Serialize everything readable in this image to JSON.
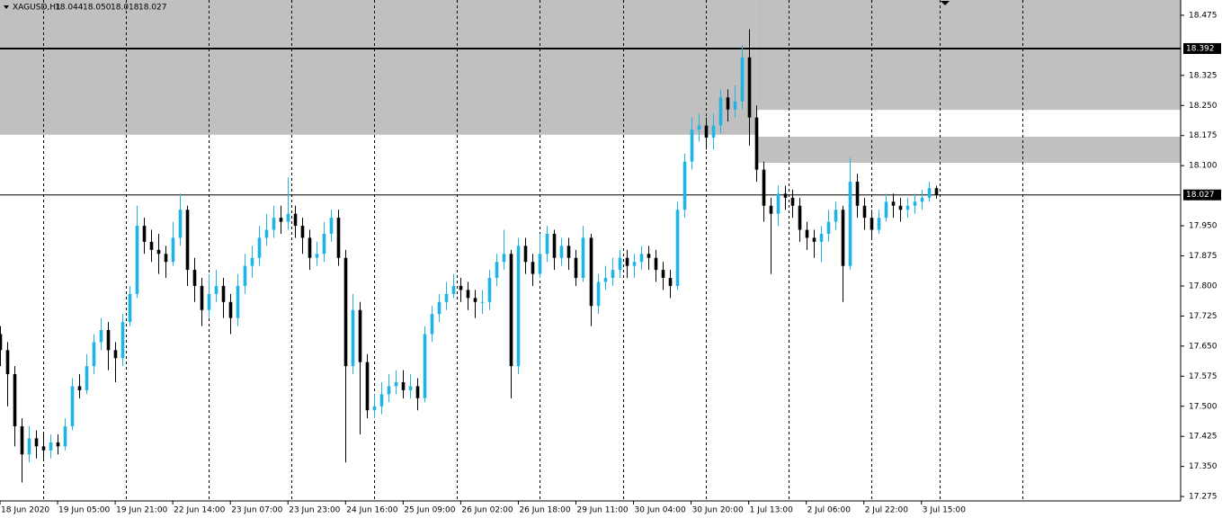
{
  "chart_data": {
    "type": "candlestick",
    "symbol": "XAGUSD,H1",
    "header_ohlc": [
      "18.044",
      "18.050",
      "18.018",
      "18.027"
    ],
    "bull_color": "#1fb4e4",
    "bear_color": "#000000",
    "ylim": [
      17.264,
      18.513
    ],
    "xlim": [
      0,
      164
    ],
    "yticks": [
      18.475,
      18.325,
      {
        "value": 18.25,
        "label": "18.250"
      },
      18.175,
      {
        "value": 18.1,
        "label": "18.100"
      },
      {
        "value": 17.95,
        "label": "17.950"
      },
      17.875,
      {
        "value": 17.8,
        "label": "17.800"
      },
      17.725,
      {
        "value": 17.65,
        "label": "17.650"
      },
      17.575,
      {
        "value": 17.5,
        "label": "17.500"
      },
      17.425,
      {
        "value": 17.35,
        "label": "17.350"
      },
      17.275
    ],
    "xticks": [
      {
        "value": 0,
        "label": "18 Jun 2020"
      },
      {
        "value": 8,
        "label": "19 Jun 05:00"
      },
      {
        "value": 16,
        "label": "19 Jun 21:00"
      },
      {
        "value": 24,
        "label": "22 Jun 14:00"
      },
      {
        "value": 32,
        "label": "23 Jun 07:00"
      },
      {
        "value": 40,
        "label": "23 Jun 23:00"
      },
      {
        "value": 48,
        "label": "24 Jun 16:00"
      },
      {
        "value": 56,
        "label": "25 Jun 09:00"
      },
      {
        "value": 64,
        "label": "26 Jun 02:00"
      },
      {
        "value": 72,
        "label": "26 Jun 18:00"
      },
      {
        "value": 80,
        "label": "29 Jun 11:00"
      },
      {
        "value": 88,
        "label": "30 Jun 04:00"
      },
      {
        "value": 96,
        "label": "30 Jun 20:00"
      },
      {
        "value": 104,
        "label": "1 Jul 13:00"
      },
      {
        "value": 112,
        "label": "2 Jul 06:00"
      },
      {
        "value": 120,
        "label": "2 Jul 22:00"
      },
      {
        "value": 128,
        "label": "3 Jul 15:00"
      }
    ],
    "separators": [
      6,
      17.5,
      29,
      40.5,
      52,
      63.5,
      75,
      86.5,
      98,
      109.5,
      121,
      130.5,
      142
    ],
    "zones": [
      {
        "x": [
          0,
          105
        ],
        "y": [
          18.177,
          18.55
        ]
      },
      {
        "x": [
          105,
          164
        ],
        "y": [
          18.239,
          18.55
        ]
      },
      {
        "x": [
          105,
          164
        ],
        "y": [
          18.107,
          18.172
        ]
      }
    ],
    "zone_color": "#c0c0c0",
    "levels": [
      {
        "value": 18.392,
        "width": 2
      },
      {
        "value": 18.027,
        "width": 1
      }
    ],
    "candles": [
      [
        17.68,
        17.7,
        17.6,
        17.64
      ],
      [
        17.64,
        17.66,
        17.5,
        17.58
      ],
      [
        17.58,
        17.6,
        17.4,
        17.45
      ],
      [
        17.45,
        17.47,
        17.31,
        17.38
      ],
      [
        17.38,
        17.45,
        17.36,
        17.42
      ],
      [
        17.42,
        17.44,
        17.37,
        17.4
      ],
      [
        17.4,
        17.43,
        17.37,
        17.39
      ],
      [
        17.39,
        17.43,
        17.37,
        17.41
      ],
      [
        17.41,
        17.43,
        17.38,
        17.4
      ],
      [
        17.4,
        17.47,
        17.39,
        17.45
      ],
      [
        17.45,
        17.57,
        17.44,
        17.55
      ],
      [
        17.55,
        17.58,
        17.52,
        17.54
      ],
      [
        17.54,
        17.63,
        17.53,
        17.6
      ],
      [
        17.6,
        17.68,
        17.58,
        17.66
      ],
      [
        17.66,
        17.72,
        17.64,
        17.69
      ],
      [
        17.69,
        17.71,
        17.59,
        17.64
      ],
      [
        17.64,
        17.66,
        17.56,
        17.62
      ],
      [
        17.62,
        17.73,
        17.6,
        17.71
      ],
      [
        17.71,
        17.8,
        17.7,
        17.78
      ],
      [
        17.78,
        18.0,
        17.77,
        17.95
      ],
      [
        17.95,
        17.97,
        17.88,
        17.91
      ],
      [
        17.91,
        17.94,
        17.86,
        17.89
      ],
      [
        17.89,
        17.93,
        17.83,
        17.88
      ],
      [
        17.88,
        17.9,
        17.82,
        17.86
      ],
      [
        17.86,
        17.96,
        17.85,
        17.92
      ],
      [
        17.92,
        18.03,
        17.9,
        17.99
      ],
      [
        17.99,
        18.0,
        17.8,
        17.84
      ],
      [
        17.84,
        17.87,
        17.76,
        17.8
      ],
      [
        17.8,
        17.82,
        17.7,
        17.74
      ],
      [
        17.74,
        17.83,
        17.72,
        17.78
      ],
      [
        17.78,
        17.84,
        17.76,
        17.8
      ],
      [
        17.8,
        17.82,
        17.72,
        17.76
      ],
      [
        17.76,
        17.78,
        17.68,
        17.72
      ],
      [
        17.72,
        17.83,
        17.7,
        17.8
      ],
      [
        17.8,
        17.88,
        17.78,
        17.85
      ],
      [
        17.85,
        17.9,
        17.82,
        17.87
      ],
      [
        17.87,
        17.95,
        17.85,
        17.92
      ],
      [
        17.92,
        17.98,
        17.9,
        17.94
      ],
      [
        17.94,
        18.0,
        17.92,
        17.97
      ],
      [
        17.97,
        18.0,
        17.93,
        17.96
      ],
      [
        17.96,
        18.07,
        17.94,
        17.98
      ],
      [
        17.98,
        18.0,
        17.92,
        17.95
      ],
      [
        17.95,
        17.97,
        17.88,
        17.92
      ],
      [
        17.92,
        17.94,
        17.84,
        17.87
      ],
      [
        17.87,
        17.91,
        17.85,
        17.88
      ],
      [
        17.88,
        17.96,
        17.86,
        17.93
      ],
      [
        17.93,
        17.99,
        17.91,
        17.97
      ],
      [
        17.97,
        17.99,
        17.85,
        17.87
      ],
      [
        17.87,
        17.89,
        17.36,
        17.6
      ],
      [
        17.6,
        17.78,
        17.58,
        17.74
      ],
      [
        17.74,
        17.76,
        17.43,
        17.61
      ],
      [
        17.61,
        17.63,
        17.47,
        17.49
      ],
      [
        17.49,
        17.53,
        17.47,
        17.5
      ],
      [
        17.5,
        17.56,
        17.48,
        17.53
      ],
      [
        17.53,
        17.58,
        17.51,
        17.55
      ],
      [
        17.55,
        17.59,
        17.53,
        17.56
      ],
      [
        17.56,
        17.59,
        17.52,
        17.54
      ],
      [
        17.54,
        17.58,
        17.52,
        17.55
      ],
      [
        17.55,
        17.57,
        17.49,
        17.52
      ],
      [
        17.52,
        17.7,
        17.51,
        17.68
      ],
      [
        17.68,
        17.75,
        17.66,
        17.73
      ],
      [
        17.73,
        17.78,
        17.71,
        17.76
      ],
      [
        17.76,
        17.81,
        17.74,
        17.78
      ],
      [
        17.78,
        17.83,
        17.77,
        17.8
      ],
      [
        17.8,
        17.82,
        17.76,
        17.79
      ],
      [
        17.79,
        17.81,
        17.74,
        17.77
      ],
      [
        17.77,
        17.79,
        17.72,
        17.76
      ],
      [
        17.76,
        17.79,
        17.73,
        17.76
      ],
      [
        17.76,
        17.84,
        17.74,
        17.82
      ],
      [
        17.82,
        17.88,
        17.8,
        17.86
      ],
      [
        17.86,
        17.94,
        17.84,
        17.88
      ],
      [
        17.88,
        17.89,
        17.52,
        17.6
      ],
      [
        17.6,
        17.92,
        17.58,
        17.9
      ],
      [
        17.9,
        17.92,
        17.83,
        17.86
      ],
      [
        17.86,
        17.88,
        17.8,
        17.83
      ],
      [
        17.83,
        17.93,
        17.82,
        17.88
      ],
      [
        17.88,
        17.95,
        17.86,
        17.93
      ],
      [
        17.93,
        17.94,
        17.84,
        17.87
      ],
      [
        17.87,
        17.92,
        17.85,
        17.9
      ],
      [
        17.9,
        17.92,
        17.84,
        17.87
      ],
      [
        17.87,
        17.89,
        17.8,
        17.82
      ],
      [
        17.82,
        17.95,
        17.81,
        17.92
      ],
      [
        17.92,
        17.93,
        17.7,
        17.75
      ],
      [
        17.75,
        17.83,
        17.73,
        17.81
      ],
      [
        17.81,
        17.85,
        17.79,
        17.82
      ],
      [
        17.82,
        17.87,
        17.8,
        17.84
      ],
      [
        17.84,
        17.89,
        17.82,
        17.87
      ],
      [
        17.87,
        17.89,
        17.82,
        17.85
      ],
      [
        17.85,
        17.88,
        17.82,
        17.86
      ],
      [
        17.86,
        17.9,
        17.84,
        17.88
      ],
      [
        17.88,
        17.9,
        17.84,
        17.87
      ],
      [
        17.87,
        17.89,
        17.81,
        17.84
      ],
      [
        17.84,
        17.86,
        17.79,
        17.82
      ],
      [
        17.82,
        17.84,
        17.77,
        17.8
      ],
      [
        17.8,
        18.01,
        17.79,
        17.99
      ],
      [
        17.99,
        18.13,
        17.97,
        18.11
      ],
      [
        18.11,
        18.22,
        18.09,
        18.19
      ],
      [
        18.19,
        18.23,
        18.16,
        18.2
      ],
      [
        18.2,
        18.22,
        18.14,
        18.17
      ],
      [
        18.17,
        18.23,
        18.14,
        18.2
      ],
      [
        18.2,
        18.29,
        18.18,
        18.27
      ],
      [
        18.27,
        18.29,
        18.21,
        18.24
      ],
      [
        18.24,
        18.3,
        18.22,
        18.26
      ],
      [
        18.26,
        18.4,
        18.24,
        18.37
      ],
      [
        18.37,
        18.44,
        18.15,
        18.22
      ],
      [
        18.22,
        18.25,
        18.06,
        18.09
      ],
      [
        18.09,
        18.11,
        17.96,
        18.0
      ],
      [
        18.0,
        18.02,
        17.83,
        17.98
      ],
      [
        17.98,
        18.05,
        17.95,
        18.03
      ],
      [
        18.03,
        18.05,
        17.99,
        18.02
      ],
      [
        18.02,
        18.04,
        17.97,
        18.0
      ],
      [
        18.0,
        18.02,
        17.91,
        17.94
      ],
      [
        17.94,
        17.96,
        17.89,
        17.92
      ],
      [
        17.92,
        17.94,
        17.87,
        17.91
      ],
      [
        17.91,
        17.95,
        17.86,
        17.93
      ],
      [
        17.93,
        17.99,
        17.91,
        17.96
      ],
      [
        17.96,
        18.01,
        17.94,
        17.99
      ],
      [
        17.99,
        18.0,
        17.76,
        17.85
      ],
      [
        17.85,
        18.12,
        17.84,
        18.06
      ],
      [
        18.06,
        18.08,
        17.97,
        18.0
      ],
      [
        18.0,
        18.02,
        17.94,
        17.97
      ],
      [
        17.97,
        17.99,
        17.92,
        17.94
      ],
      [
        17.94,
        17.99,
        17.93,
        17.97
      ],
      [
        17.97,
        18.03,
        17.96,
        18.01
      ],
      [
        18.01,
        18.03,
        17.97,
        18.0
      ],
      [
        18.0,
        18.02,
        17.96,
        17.99
      ],
      [
        17.99,
        18.02,
        17.97,
        18.0
      ],
      [
        18.0,
        18.03,
        17.98,
        18.01
      ],
      [
        18.01,
        18.04,
        17.99,
        18.02
      ],
      [
        18.02,
        18.06,
        18.01,
        18.044
      ],
      [
        18.044,
        18.05,
        18.018,
        18.027
      ]
    ]
  }
}
